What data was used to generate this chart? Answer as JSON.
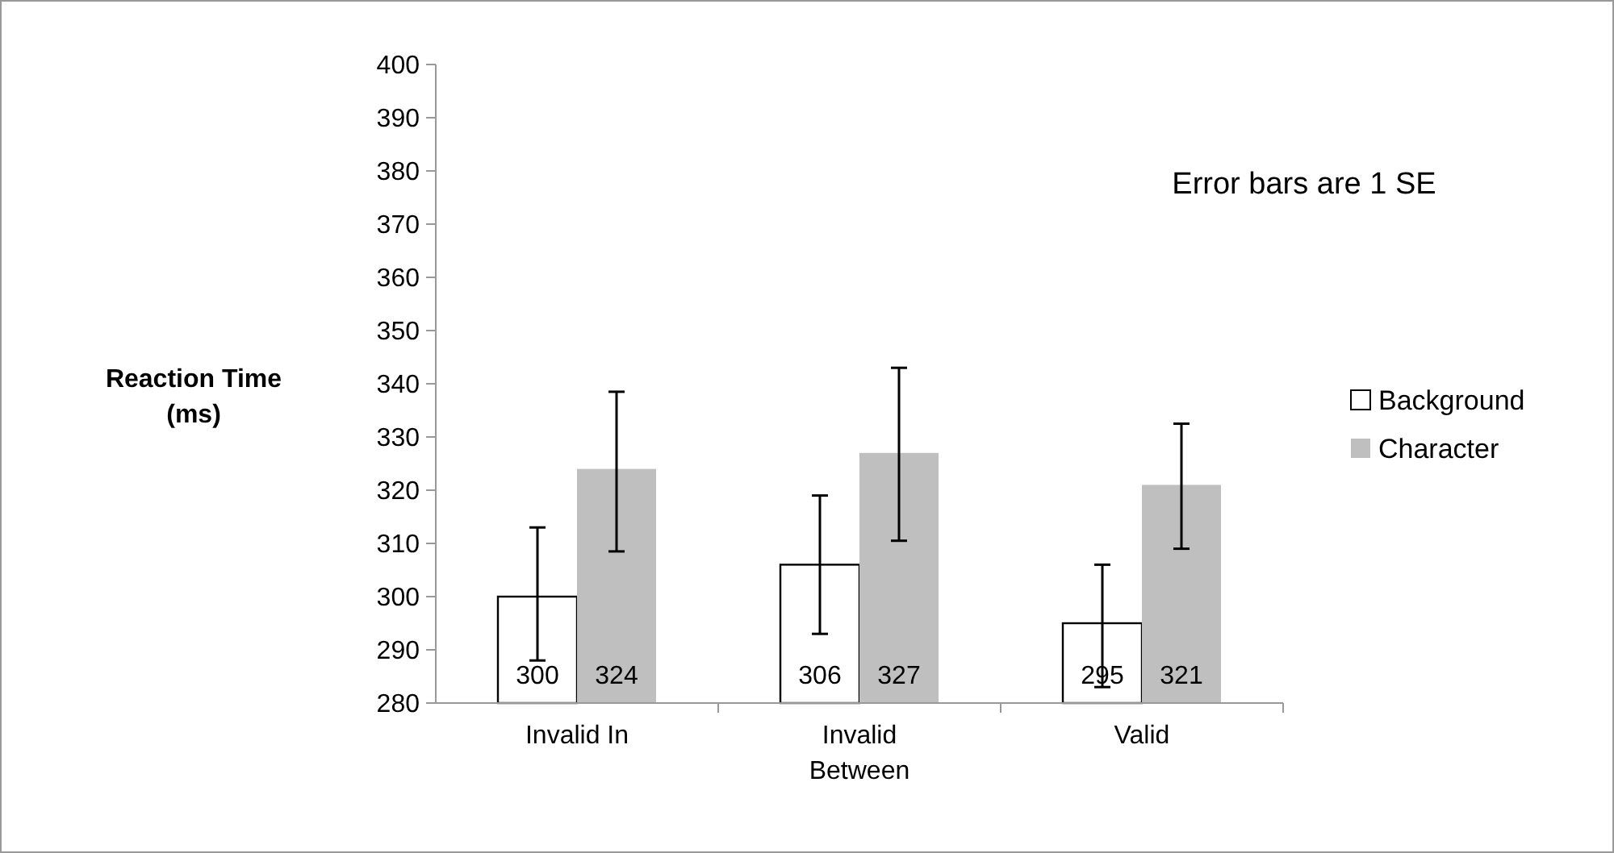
{
  "chart_data": {
    "type": "bar",
    "ylabel": "Reaction Time (ms)",
    "categories": [
      "Invalid In",
      "Invalid Between",
      "Valid"
    ],
    "series": [
      {
        "name": "Background",
        "color": "#ffffff",
        "values": [
          300,
          306,
          295
        ],
        "errors": [
          [
            288,
            313
          ],
          [
            293,
            319
          ],
          [
            283,
            306
          ]
        ]
      },
      {
        "name": "Character",
        "color": "#bfbfbf",
        "values": [
          324,
          327,
          321
        ],
        "errors": [
          [
            308.5,
            338.5
          ],
          [
            310.5,
            343
          ],
          [
            309,
            332.5
          ]
        ]
      }
    ],
    "ylim": [
      280,
      400
    ],
    "yticks": [
      280,
      290,
      300,
      310,
      320,
      330,
      340,
      350,
      360,
      370,
      380,
      390,
      400
    ],
    "data_labels": true,
    "legend": "right",
    "grid": false,
    "annotations": [
      "Error bars are 1 SE"
    ]
  }
}
